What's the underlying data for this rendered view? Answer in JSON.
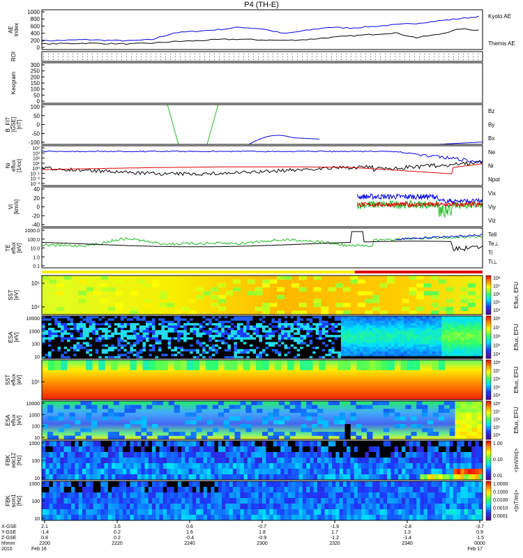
{
  "title": "P4 (TH-E)",
  "colors": {
    "kyoto": "#0000dd",
    "themis": "#000000",
    "bz": "#dd0000",
    "by": "#22bb22",
    "bx": "#0000dd",
    "ne": "#dd0000",
    "ni": "#000000",
    "npot": "#0000dd",
    "vx": "#dd0000",
    "vy": "#22bb22",
    "vz": "#0000dd",
    "tell": "#000000",
    "te_perp": "#dd0000",
    "ti": "#22bb22",
    "ti_perp": "#0000dd"
  },
  "chart_data": [
    {
      "type": "line",
      "name": "ae",
      "ylabel": "AE Index",
      "ylim": [
        0,
        1000
      ],
      "yticks": [
        "1000",
        "800",
        "600",
        "400",
        "200",
        "0"
      ],
      "legend": [
        "Kyoto AE",
        "Themis AE"
      ],
      "x": [
        0,
        0.05,
        0.1,
        0.15,
        0.2,
        0.25,
        0.3,
        0.35,
        0.4,
        0.45,
        0.5,
        0.55,
        0.6,
        0.65,
        0.7,
        0.75,
        0.8,
        0.85,
        0.9,
        0.95,
        1.0
      ],
      "series": [
        {
          "name": "Kyoto AE",
          "values": [
            220,
            230,
            250,
            230,
            220,
            250,
            420,
            460,
            500,
            560,
            520,
            400,
            480,
            560,
            540,
            580,
            620,
            660,
            720,
            780,
            840
          ]
        },
        {
          "name": "Themis AE",
          "values": [
            140,
            150,
            160,
            150,
            140,
            160,
            200,
            220,
            250,
            260,
            240,
            230,
            250,
            300,
            340,
            380,
            420,
            300,
            380,
            520,
            480
          ]
        }
      ]
    },
    {
      "type": "line",
      "name": "roi",
      "ylabel": "ROI"
    },
    {
      "type": "line",
      "name": "keogram",
      "ylabel": "Keogram",
      "ylim": [
        0,
        300
      ],
      "yticks": [
        "300",
        "250",
        "200",
        "150",
        "100",
        "50",
        "0"
      ]
    },
    {
      "type": "line",
      "name": "bfit",
      "ylabel": "B_FIT [GSE] [nT]",
      "ylim": [
        -100,
        100
      ],
      "yticks": [
        "100",
        "50",
        "0",
        "-50",
        "-100"
      ],
      "legend": [
        "Bz",
        "By",
        "Bx"
      ]
    },
    {
      "type": "line",
      "name": "density",
      "ylabel": "Ni eflux [1/cc]",
      "yticks": [
        "10⁴",
        "10³",
        "10²",
        "10¹",
        "10⁰",
        "10⁻¹",
        "10⁻²",
        "10⁻³"
      ],
      "legend": [
        "Ne",
        "Ni",
        "Npot"
      ]
    },
    {
      "type": "line",
      "name": "velocity",
      "ylabel": "Vi [km/s]",
      "ylim": [
        -50,
        40
      ],
      "yticks": [
        "40",
        "20",
        "0",
        "-20",
        "-40"
      ],
      "legend": [
        "Vix",
        "Viy",
        "Viz"
      ]
    },
    {
      "type": "line",
      "name": "temperature",
      "ylabel": "TE eflux [eV]",
      "yticks": [
        "1000.0",
        "100.0",
        "10.0",
        "1.0",
        "0.1"
      ],
      "legend": [
        "Tell",
        "Te⊥",
        "Ti",
        "Ti⊥"
      ]
    },
    {
      "type": "heatmap",
      "name": "sst_e",
      "ylabel": "SST [eV]",
      "yticks": [
        "10⁵",
        "10⁴"
      ]
    },
    {
      "type": "heatmap",
      "name": "esa_e",
      "ylabel": "ESA [eV]",
      "yticks": [
        "10000",
        "1000",
        "100",
        "10"
      ]
    },
    {
      "type": "heatmap",
      "name": "sst_i",
      "ylabel": "SST eflux [eV]",
      "yticks": [
        "10⁵"
      ]
    },
    {
      "type": "heatmap",
      "name": "esa_i",
      "ylabel": "ESA eflux [eV]",
      "yticks": [
        "10000",
        "1000",
        "100",
        "10"
      ]
    },
    {
      "type": "heatmap",
      "name": "fbk_e12",
      "ylabel": "FBK edc12 [Hz]",
      "yticks": [
        "1000",
        "100",
        "10"
      ]
    },
    {
      "type": "heatmap",
      "name": "fbk_scm1",
      "ylabel": "FBK scm1 [Hz]",
      "yticks": [
        "1000",
        "100",
        "10"
      ]
    }
  ],
  "colorbars": {
    "eflux": {
      "label": "Eflux, EFU",
      "ticks": [
        "10⁸",
        "10⁷",
        "10⁶",
        "10⁵",
        "10⁴"
      ]
    },
    "fbk_e": {
      "label": "<|mV/m|>",
      "ticks": [
        "1.00",
        "0.10",
        "0.01"
      ]
    },
    "fbk_b": {
      "label": "<|nT/m|>",
      "ticks": [
        "1.0000",
        "0.1000",
        "0.0100",
        "0.0010",
        "0.0001"
      ]
    }
  },
  "x_axis": {
    "row_labels": [
      "X-GSE",
      "Y-GSE",
      "Z-GSE",
      "hhmm",
      "2010"
    ],
    "ticks": [
      {
        "rows": [
          "2.1",
          "-1.4",
          "0.8",
          "2200",
          "Feb 16"
        ]
      },
      {
        "rows": [
          "1.6",
          "0.2",
          "0.2",
          "2220",
          ""
        ]
      },
      {
        "rows": [
          "0.6",
          "1.6",
          "-0.4",
          "2240",
          ""
        ]
      },
      {
        "rows": [
          "-0.7",
          "1.8",
          "-0.9",
          "2300",
          ""
        ]
      },
      {
        "rows": [
          "-1.9",
          "1.7",
          "-1.2",
          "2320",
          ""
        ]
      },
      {
        "rows": [
          "-2.8",
          "1.3",
          "-1.4",
          "2340",
          ""
        ]
      },
      {
        "rows": [
          "-3.7",
          "0.9",
          "-1.5",
          "0000",
          "Feb 17"
        ]
      }
    ]
  }
}
